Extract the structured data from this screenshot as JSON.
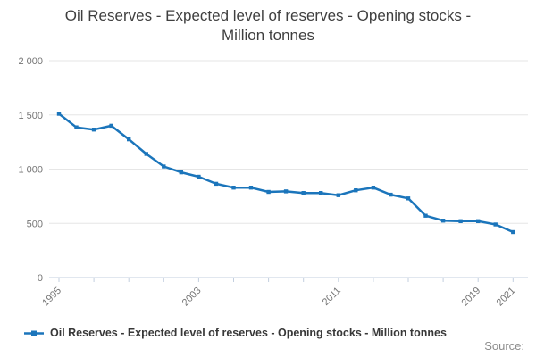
{
  "title": {
    "line1": "Oil Reserves - Expected level of reserves - Opening stocks -",
    "line2": "Million tonnes"
  },
  "legend": {
    "label": "Oil Reserves - Expected level of reserves - Opening stocks - Million tonnes"
  },
  "source": {
    "label": "Source:"
  },
  "colors": {
    "line": "#1b75bb",
    "marker": "#1b75bb",
    "grid": "#e6e6e6",
    "axis": "#c3cfdf",
    "tick_label": "#757575",
    "title_text": "#3f3f3f",
    "legend_text": "#383838",
    "source_text": "#8c8c8c"
  },
  "chart_data": {
    "type": "line",
    "title": "Oil Reserves - Expected level of reserves - Opening stocks - Million tonnes",
    "xlabel": "",
    "ylabel": "",
    "x": [
      1995,
      1996,
      1997,
      1998,
      1999,
      2000,
      2001,
      2002,
      2003,
      2004,
      2005,
      2006,
      2007,
      2008,
      2009,
      2010,
      2011,
      2012,
      2013,
      2014,
      2015,
      2016,
      2017,
      2018,
      2019,
      2020,
      2021
    ],
    "series": [
      {
        "name": "Oil Reserves - Expected level of reserves - Opening stocks - Million tonnes",
        "values": [
          1510,
          1385,
          1365,
          1400,
          1275,
          1140,
          1025,
          970,
          930,
          865,
          830,
          830,
          790,
          795,
          780,
          780,
          760,
          805,
          830,
          765,
          730,
          570,
          525,
          520,
          520,
          490,
          420
        ]
      }
    ],
    "ylim": [
      0,
      2000
    ],
    "y_ticks": [
      0,
      500,
      1000,
      1500,
      2000
    ],
    "y_tick_labels": [
      "0",
      "500",
      "1 000",
      "1 500",
      "2 000"
    ],
    "x_tick_step": 2,
    "x_labeled_ticks": [
      1995,
      2003,
      2011,
      2019,
      2021
    ],
    "grid": "horizontal",
    "legend_position": "bottom",
    "marker": "square"
  }
}
